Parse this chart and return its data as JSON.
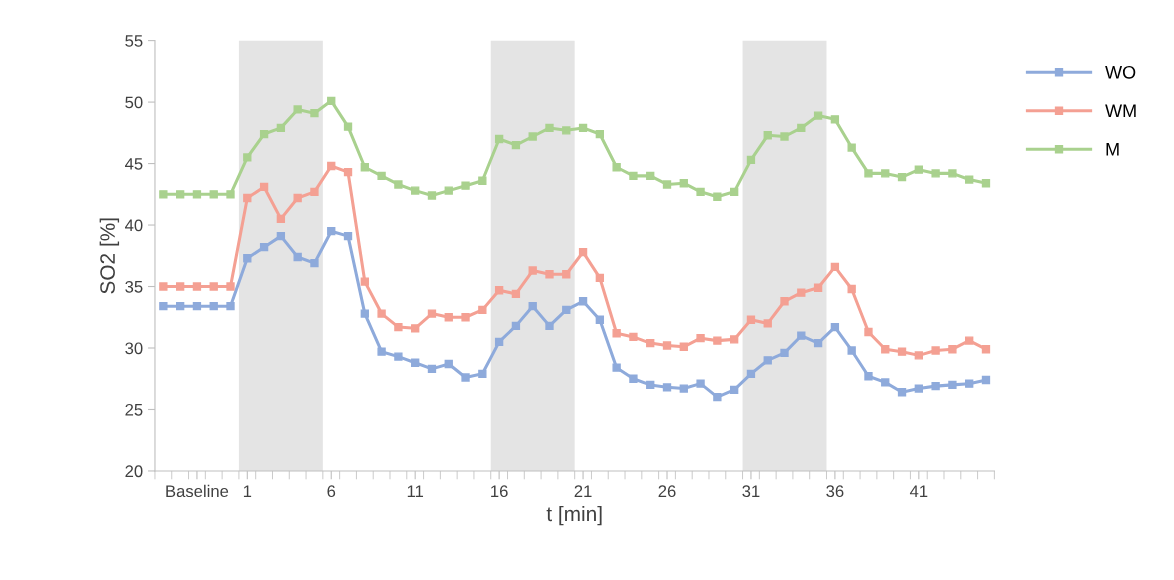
{
  "chart_data": {
    "type": "line",
    "xlabel": "t [min]",
    "ylabel": "SO2 [%]",
    "x": [
      -4,
      -3,
      -2,
      -1,
      0,
      1,
      2,
      3,
      4,
      5,
      6,
      7,
      8,
      9,
      10,
      11,
      12,
      13,
      14,
      15,
      16,
      17,
      18,
      19,
      20,
      21,
      22,
      23,
      24,
      25,
      26,
      27,
      28,
      29,
      30,
      31,
      32,
      33,
      34,
      35,
      36,
      37,
      38,
      39,
      40,
      41,
      42,
      43,
      44,
      45
    ],
    "xlim": [
      -4.5,
      45.5
    ],
    "xticks": [
      {
        "value": -2,
        "label": "Baseline"
      },
      1,
      6,
      11,
      16,
      21,
      26,
      31,
      36,
      41
    ],
    "ylim": [
      20,
      55
    ],
    "yticks": [
      20,
      25,
      30,
      35,
      40,
      45,
      50,
      55
    ],
    "series": [
      {
        "name": "WO",
        "color": "#8eaadb",
        "values": [
          33.4,
          33.4,
          33.4,
          33.4,
          33.4,
          37.3,
          38.2,
          39.1,
          37.4,
          36.9,
          39.5,
          39.1,
          32.8,
          29.7,
          29.3,
          28.8,
          28.3,
          28.7,
          27.6,
          27.9,
          30.5,
          31.8,
          33.4,
          31.8,
          33.1,
          33.8,
          32.3,
          28.4,
          27.5,
          27.0,
          26.8,
          26.7,
          27.1,
          26.0,
          26.6,
          27.9,
          29.0,
          29.6,
          31.0,
          30.4,
          31.7,
          29.8,
          27.7,
          27.2,
          26.4,
          26.7,
          26.9,
          27.0,
          27.1,
          27.4
        ]
      },
      {
        "name": "WM",
        "color": "#f4a093",
        "values": [
          35.0,
          35.0,
          35.0,
          35.0,
          35.0,
          42.2,
          43.1,
          40.5,
          42.2,
          42.7,
          44.8,
          44.3,
          35.4,
          32.8,
          31.7,
          31.6,
          32.8,
          32.5,
          32.5,
          33.1,
          34.7,
          34.4,
          36.3,
          36.0,
          36.0,
          37.8,
          35.7,
          31.2,
          30.9,
          30.4,
          30.2,
          30.1,
          30.8,
          30.6,
          30.7,
          32.3,
          32.0,
          33.8,
          34.5,
          34.9,
          36.6,
          34.8,
          31.3,
          29.9,
          29.7,
          29.4,
          29.8,
          29.9,
          30.6,
          29.9
        ]
      },
      {
        "name": "M",
        "color": "#a9d18e",
        "values": [
          42.5,
          42.5,
          42.5,
          42.5,
          42.5,
          45.5,
          47.4,
          47.9,
          49.4,
          49.1,
          50.1,
          48.0,
          44.7,
          44.0,
          43.3,
          42.8,
          42.4,
          42.8,
          43.2,
          43.6,
          47.0,
          46.5,
          47.2,
          47.9,
          47.7,
          47.9,
          47.4,
          44.7,
          44.0,
          44.0,
          43.3,
          43.4,
          42.7,
          42.3,
          42.7,
          45.3,
          47.3,
          47.2,
          47.9,
          48.9,
          48.6,
          46.3,
          44.2,
          44.2,
          43.9,
          44.5,
          44.2,
          44.2,
          43.7,
          43.4
        ]
      }
    ],
    "bands": [
      {
        "axis": "x",
        "from": 0.5,
        "to": 5.5,
        "color": "#e4e4e4"
      },
      {
        "axis": "x",
        "from": 15.5,
        "to": 20.5,
        "color": "#e4e4e4"
      },
      {
        "axis": "x",
        "from": 30.5,
        "to": 35.5,
        "color": "#e4e4e4"
      }
    ],
    "marker": "square",
    "line_style": "solid",
    "legend": "top right",
    "grid": false
  }
}
